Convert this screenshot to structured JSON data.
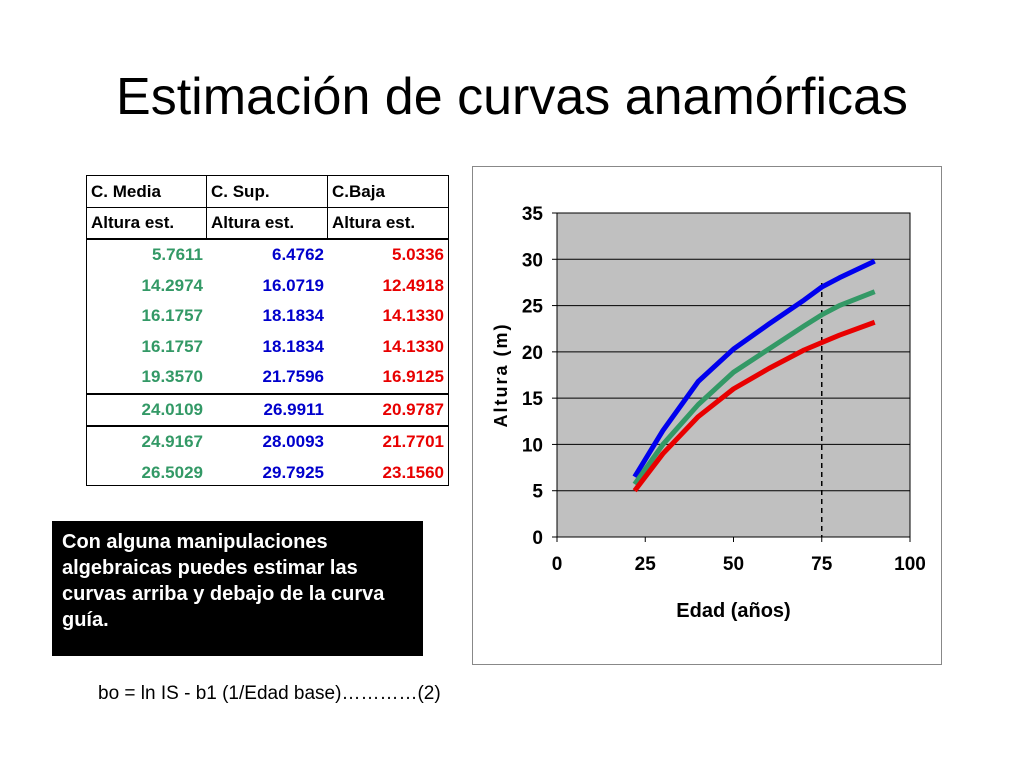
{
  "slide": {
    "title": "Estimación de curvas anamórficas",
    "note": "Con alguna manipulaciones algebraicas puedes estimar las curvas arriba y debajo de la curva guía.",
    "formula": "bo = ln IS - b1 (1/Edad base)…………(2)"
  },
  "table": {
    "headers": [
      "C. Media",
      "C. Sup.",
      "C.Baja"
    ],
    "subheaders": [
      "Altura est.",
      "Altura est.",
      "Altura est."
    ],
    "rows": [
      [
        "5.7611",
        "6.4762",
        "5.0336"
      ],
      [
        "14.2974",
        "16.0719",
        "12.4918"
      ],
      [
        "16.1757",
        "18.1834",
        "14.1330"
      ],
      [
        "16.1757",
        "18.1834",
        "14.1330"
      ],
      [
        "19.3570",
        "21.7596",
        "16.9125"
      ],
      [
        "24.0109",
        "26.9911",
        "20.9787"
      ],
      [
        "24.9167",
        "28.0093",
        "21.7701"
      ],
      [
        "26.5029",
        "29.7925",
        "23.1560"
      ]
    ],
    "colors": [
      "#339966",
      "#0000cc",
      "#e80000"
    ]
  },
  "chart_data": {
    "type": "line",
    "xlabel": "Edad (años)",
    "ylabel": "Altura (m)",
    "xlim": [
      0,
      100
    ],
    "ylim": [
      0,
      35
    ],
    "xticks": [
      "0",
      "25",
      "50",
      "75",
      "100"
    ],
    "yticks": [
      "0",
      "5",
      "10",
      "15",
      "20",
      "25",
      "30",
      "35"
    ],
    "grid": "horizontal",
    "plot_background": "#c0c0c0",
    "reference_line_x": 75,
    "series": [
      {
        "color": "#0000ee",
        "x": [
          22,
          30,
          40,
          50,
          60,
          70,
          75,
          80,
          90
        ],
        "y": [
          6.5,
          11.5,
          16.8,
          20.3,
          23.0,
          25.6,
          27.0,
          28.0,
          29.8
        ]
      },
      {
        "color": "#339966",
        "x": [
          22,
          30,
          40,
          50,
          60,
          70,
          75,
          80,
          90
        ],
        "y": [
          5.7,
          10.0,
          14.3,
          17.8,
          20.3,
          22.8,
          24.0,
          25.0,
          26.5
        ]
      },
      {
        "color": "#e80000",
        "x": [
          22,
          30,
          40,
          50,
          60,
          70,
          75,
          80,
          90
        ],
        "y": [
          5.0,
          9.0,
          13.0,
          16.0,
          18.2,
          20.2,
          21.0,
          21.8,
          23.2
        ]
      }
    ]
  }
}
